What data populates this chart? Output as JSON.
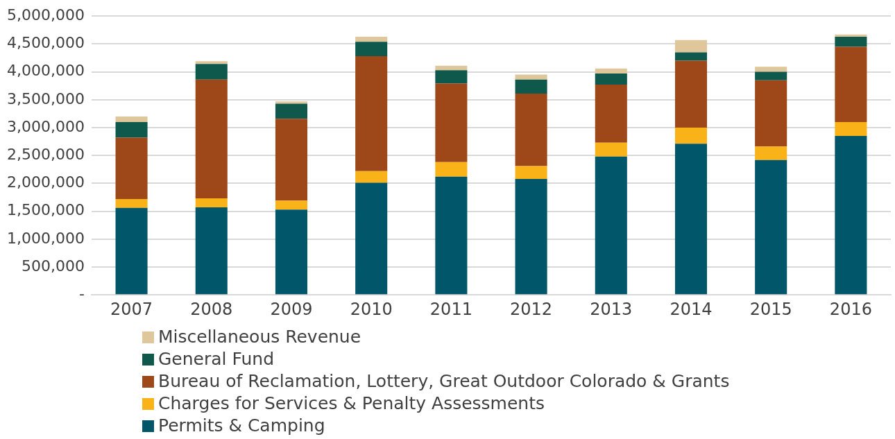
{
  "chart_data": {
    "type": "bar",
    "stacked": true,
    "categories": [
      "2007",
      "2008",
      "2009",
      "2010",
      "2011",
      "2012",
      "2013",
      "2014",
      "2015",
      "2016"
    ],
    "series": [
      {
        "name": "Permits & Camping",
        "color": "#02566a",
        "values": [
          1560000,
          1570000,
          1530000,
          2010000,
          2120000,
          2080000,
          2480000,
          2710000,
          2420000,
          2850000
        ]
      },
      {
        "name": "Charges for Services & Penalty Assessments",
        "color": "#f9b218",
        "values": [
          160000,
          160000,
          160000,
          210000,
          260000,
          230000,
          250000,
          290000,
          240000,
          250000
        ]
      },
      {
        "name": "Bureau of Reclamation, Lottery, Great Outdoor Colorado & Grants",
        "color": "#9e4819",
        "values": [
          1100000,
          2130000,
          1470000,
          2060000,
          1410000,
          1300000,
          1040000,
          1200000,
          1190000,
          1350000
        ]
      },
      {
        "name": "General Fund",
        "color": "#0e594c",
        "values": [
          280000,
          280000,
          270000,
          260000,
          240000,
          250000,
          200000,
          150000,
          150000,
          180000
        ]
      },
      {
        "name": "Miscellaneous Revenue",
        "color": "#dfc79b",
        "values": [
          100000,
          50000,
          40000,
          90000,
          80000,
          90000,
          90000,
          220000,
          90000,
          40000
        ]
      }
    ],
    "ylim": [
      0,
      5000000
    ],
    "yticks": [
      {
        "value": 0,
        "label": "-"
      },
      {
        "value": 500000,
        "label": "500,000"
      },
      {
        "value": 1000000,
        "label": "1,000,000"
      },
      {
        "value": 1500000,
        "label": "1,500,000"
      },
      {
        "value": 2000000,
        "label": "2,000,000"
      },
      {
        "value": 2500000,
        "label": "2,500,000"
      },
      {
        "value": 3000000,
        "label": "3,000,000"
      },
      {
        "value": 3500000,
        "label": "3,500,000"
      },
      {
        "value": 4000000,
        "label": "4,000,000"
      },
      {
        "value": 4500000,
        "label": "4,500,000"
      },
      {
        "value": 5000000,
        "label": "5,000,000"
      }
    ],
    "grid": "y",
    "legend": "bottom"
  }
}
